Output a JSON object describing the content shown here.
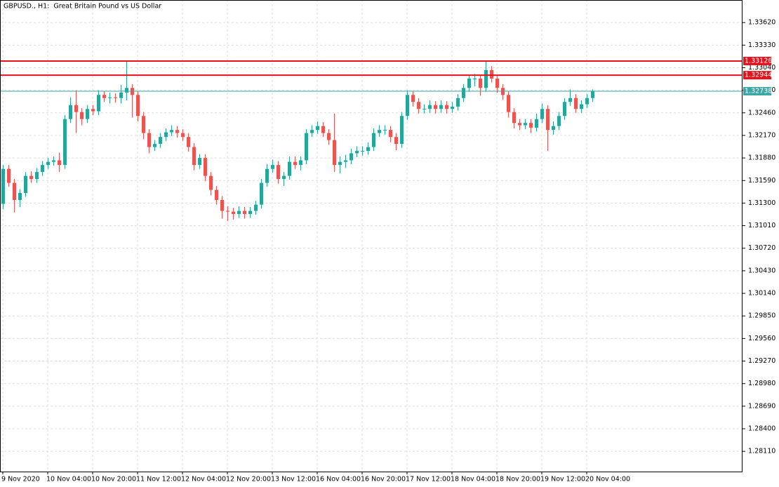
{
  "chart_data": {
    "type": "candlestick",
    "title": "GBPUSD., H1:  Great Britain Pound vs US Dollar",
    "categories": [
      "9 Nov 2020",
      null,
      null,
      null,
      null,
      null,
      null,
      null,
      "10 Nov 04:00",
      null,
      null,
      null,
      null,
      null,
      null,
      null,
      "10 Nov 20:00",
      null,
      null,
      null,
      null,
      null,
      null,
      null,
      "11 Nov 12:00",
      null,
      null,
      null,
      null,
      null,
      null,
      null,
      "12 Nov 04:00",
      null,
      null,
      null,
      null,
      null,
      null,
      null,
      "12 Nov 20:00",
      null,
      null,
      null,
      null,
      null,
      null,
      null,
      "13 Nov 12:00",
      null,
      null,
      null,
      null,
      null,
      null,
      null,
      "16 Nov 04:00",
      null,
      null,
      null,
      null,
      null,
      null,
      null,
      "16 Nov 20:00",
      null,
      null,
      null,
      null,
      null,
      null,
      null,
      "17 Nov 12:00",
      null,
      null,
      null,
      null,
      null,
      null,
      null,
      "18 Nov 04:00",
      null,
      null,
      null,
      null,
      null,
      null,
      null,
      "18 Nov 20:00",
      null,
      null,
      null,
      null,
      null,
      null,
      null,
      "19 Nov 12:00",
      null,
      null,
      null,
      null,
      null,
      null,
      null,
      "20 Nov 04:00",
      null
    ],
    "open": [
      1.3129,
      1.3174,
      1.3156,
      1.3134,
      1.3143,
      1.3165,
      1.3161,
      1.317,
      1.3179,
      1.3183,
      1.3185,
      1.3179,
      1.3238,
      1.3256,
      1.3247,
      1.3238,
      1.3251,
      1.3248,
      1.3269,
      1.3265,
      1.3266,
      1.3265,
      1.3272,
      1.3278,
      1.3269,
      1.3242,
      1.322,
      1.3202,
      1.3206,
      1.3215,
      1.3221,
      1.3224,
      1.322,
      1.3215,
      1.3202,
      1.3179,
      1.3188,
      1.3165,
      1.3147,
      1.3134,
      1.312,
      1.3119,
      1.3116,
      1.312,
      1.3116,
      1.312,
      1.3128,
      1.3156,
      1.3174,
      1.3179,
      1.3161,
      1.3165,
      1.3183,
      1.3179,
      1.3185,
      1.322,
      1.3224,
      1.3229,
      1.322,
      1.3211,
      1.3179,
      1.3183,
      1.3185,
      1.3194,
      1.3197,
      1.3197,
      1.3202,
      1.322,
      1.3224,
      1.3224,
      1.3215,
      1.3206,
      1.3242,
      1.3269,
      1.326,
      1.3251,
      1.3251,
      1.3256,
      1.3251,
      1.3256,
      1.3251,
      1.3254,
      1.3265,
      1.3278,
      1.329,
      1.329,
      1.3278,
      1.3301,
      1.329,
      1.3278,
      1.3269,
      1.3247,
      1.3233,
      1.323,
      1.3233,
      1.3227,
      1.3238,
      1.3251,
      1.3224,
      1.3229,
      1.3242,
      1.326,
      1.3265,
      1.3251,
      1.3257,
      1.3265
    ],
    "high": [
      1.3179,
      1.3179,
      1.3161,
      1.3148,
      1.317,
      1.3171,
      1.3175,
      1.3184,
      1.3188,
      1.319,
      1.3195,
      1.3243,
      1.3266,
      1.3275,
      1.3252,
      1.3256,
      1.3256,
      1.3275,
      1.3274,
      1.3272,
      1.3271,
      1.3282,
      1.3313,
      1.3283,
      1.3274,
      1.3247,
      1.3225,
      1.3211,
      1.322,
      1.3226,
      1.323,
      1.3229,
      1.3225,
      1.322,
      1.3207,
      1.3193,
      1.3193,
      1.317,
      1.3152,
      1.3139,
      1.3126,
      1.3124,
      1.3126,
      1.3125,
      1.3125,
      1.3133,
      1.3161,
      1.318,
      1.3186,
      1.3184,
      1.317,
      1.319,
      1.319,
      1.319,
      1.3225,
      1.323,
      1.3235,
      1.3234,
      1.3225,
      1.3245,
      1.319,
      1.3192,
      1.32,
      1.3203,
      1.3203,
      1.3208,
      1.3226,
      1.323,
      1.323,
      1.3229,
      1.322,
      1.3247,
      1.3275,
      1.3274,
      1.3265,
      1.3257,
      1.3262,
      1.3261,
      1.3262,
      1.3261,
      1.326,
      1.327,
      1.3283,
      1.3295,
      1.3296,
      1.3295,
      1.3313,
      1.3306,
      1.3295,
      1.3283,
      1.3274,
      1.3252,
      1.3238,
      1.3238,
      1.3238,
      1.3245,
      1.3258,
      1.3256,
      1.3235,
      1.3247,
      1.3265,
      1.3276,
      1.327,
      1.3262,
      1.327,
      1.3276
    ],
    "low": [
      1.3122,
      1.3151,
      1.3118,
      1.3125,
      1.3138,
      1.3156,
      1.3156,
      1.3165,
      1.3174,
      1.3178,
      1.317,
      1.3174,
      1.3233,
      1.322,
      1.323,
      1.3233,
      1.3243,
      1.3243,
      1.326,
      1.3258,
      1.3259,
      1.3258,
      1.3262,
      1.324,
      1.3235,
      1.3212,
      1.3194,
      1.3197,
      1.3201,
      1.321,
      1.3216,
      1.3214,
      1.321,
      1.3196,
      1.3172,
      1.3174,
      1.3158,
      1.314,
      1.3128,
      1.311,
      1.3107,
      1.3109,
      1.3111,
      1.311,
      1.3111,
      1.3115,
      1.3123,
      1.3151,
      1.3169,
      1.3155,
      1.3152,
      1.316,
      1.3174,
      1.3172,
      1.318,
      1.3215,
      1.3219,
      1.3215,
      1.3205,
      1.317,
      1.3168,
      1.3175,
      1.318,
      1.3189,
      1.3191,
      1.3192,
      1.3197,
      1.3215,
      1.3218,
      1.3208,
      1.3198,
      1.3201,
      1.3237,
      1.3254,
      1.3245,
      1.3245,
      1.3246,
      1.3245,
      1.3246,
      1.3245,
      1.3246,
      1.3249,
      1.326,
      1.3273,
      1.328,
      1.3268,
      1.3273,
      1.3285,
      1.3272,
      1.3263,
      1.324,
      1.3226,
      1.3224,
      1.3225,
      1.322,
      1.3222,
      1.3233,
      1.3197,
      1.3218,
      1.3224,
      1.3237,
      1.3255,
      1.3246,
      1.3246,
      1.3252,
      1.326
    ],
    "close": [
      1.3174,
      1.3156,
      1.3134,
      1.3143,
      1.3165,
      1.3161,
      1.317,
      1.3179,
      1.3183,
      1.3185,
      1.3179,
      1.3238,
      1.3256,
      1.3247,
      1.3238,
      1.3251,
      1.3248,
      1.3269,
      1.3265,
      1.3266,
      1.3265,
      1.3272,
      1.3278,
      1.3269,
      1.3242,
      1.322,
      1.3202,
      1.3206,
      1.3215,
      1.3221,
      1.3224,
      1.322,
      1.3215,
      1.3202,
      1.3179,
      1.3188,
      1.3165,
      1.3147,
      1.3134,
      1.312,
      1.3119,
      1.3116,
      1.312,
      1.3116,
      1.312,
      1.3128,
      1.3156,
      1.3174,
      1.3179,
      1.3161,
      1.3165,
      1.3183,
      1.3179,
      1.3185,
      1.322,
      1.3224,
      1.3229,
      1.322,
      1.3211,
      1.3179,
      1.3183,
      1.3185,
      1.3194,
      1.3197,
      1.3197,
      1.3202,
      1.322,
      1.3224,
      1.3224,
      1.3215,
      1.3206,
      1.3242,
      1.3269,
      1.326,
      1.3251,
      1.3251,
      1.3256,
      1.3251,
      1.3256,
      1.3251,
      1.3254,
      1.3265,
      1.3278,
      1.329,
      1.329,
      1.3278,
      1.3301,
      1.329,
      1.3278,
      1.3269,
      1.3247,
      1.3233,
      1.323,
      1.3233,
      1.3227,
      1.3238,
      1.3251,
      1.3224,
      1.3229,
      1.3242,
      1.326,
      1.3265,
      1.3251,
      1.3257,
      1.3265,
      1.32738
    ],
    "up_color": "#26a69a",
    "down_color": "#ef5350",
    "ylim": [
      1.2785,
      1.3391
    ],
    "yticks": [
      {
        "value": 1.2811,
        "label": "1.28110"
      },
      {
        "value": 1.284,
        "label": "1.28400"
      },
      {
        "value": 1.2869,
        "label": "1.28690"
      },
      {
        "value": 1.2898,
        "label": "1.28980"
      },
      {
        "value": 1.2927,
        "label": "1.29270"
      },
      {
        "value": 1.2956,
        "label": "1.29560"
      },
      {
        "value": 1.2985,
        "label": "1.29850"
      },
      {
        "value": 1.3014,
        "label": "1.30140"
      },
      {
        "value": 1.3043,
        "label": "1.30430"
      },
      {
        "value": 1.3072,
        "label": "1.30720"
      },
      {
        "value": 1.3101,
        "label": "1.31010"
      },
      {
        "value": 1.313,
        "label": "1.31300"
      },
      {
        "value": 1.3159,
        "label": "1.31590"
      },
      {
        "value": 1.3188,
        "label": "1.31880"
      },
      {
        "value": 1.3217,
        "label": "1.32170"
      },
      {
        "value": 1.3246,
        "label": "1.32460"
      },
      {
        "value": 1.3275,
        "label": "1.32750"
      },
      {
        "value": 1.3304,
        "label": "1.33040"
      },
      {
        "value": 1.3333,
        "label": "1.33330"
      },
      {
        "value": 1.3362,
        "label": "1.33620"
      }
    ],
    "grid": true,
    "levels": [
      {
        "value": 1.33126,
        "color": "#e8101a"
      },
      {
        "value": 1.32944,
        "color": "#e8101a"
      },
      {
        "value": 1.32738,
        "color": "#3aa6a6"
      }
    ]
  }
}
